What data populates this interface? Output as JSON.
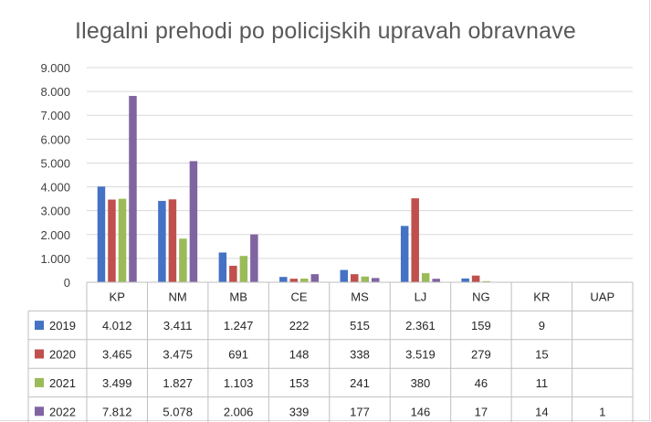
{
  "chart_data": {
    "type": "bar",
    "title": "Ilegalni prehodi po policijskih upravah obravnave",
    "categories": [
      "KP",
      "NM",
      "MB",
      "CE",
      "MS",
      "LJ",
      "NG",
      "KR",
      "UAP"
    ],
    "ylim": [
      0,
      9000
    ],
    "yticks": [
      "0",
      "1.000",
      "2.000",
      "3.000",
      "4.000",
      "5.000",
      "6.000",
      "7.000",
      "8.000",
      "9.000"
    ],
    "grid": true,
    "legend": "data-table-left",
    "series": [
      {
        "name": "2019",
        "color": "#4472c4",
        "values": [
          4012,
          3411,
          1247,
          222,
          515,
          2361,
          159,
          9,
          null
        ],
        "labels": [
          "4.012",
          "3.411",
          "1.247",
          "222",
          "515",
          "2.361",
          "159",
          "9",
          ""
        ]
      },
      {
        "name": "2020",
        "color": "#c0504d",
        "values": [
          3465,
          3475,
          691,
          148,
          338,
          3519,
          279,
          15,
          null
        ],
        "labels": [
          "3.465",
          "3.475",
          "691",
          "148",
          "338",
          "3.519",
          "279",
          "15",
          ""
        ]
      },
      {
        "name": "2021",
        "color": "#9bbb59",
        "values": [
          3499,
          1827,
          1103,
          153,
          241,
          380,
          46,
          11,
          null
        ],
        "labels": [
          "3.499",
          "1.827",
          "1.103",
          "153",
          "241",
          "380",
          "46",
          "11",
          ""
        ]
      },
      {
        "name": "2022",
        "color": "#8064a2",
        "values": [
          7812,
          5078,
          2006,
          339,
          177,
          146,
          17,
          14,
          1
        ],
        "labels": [
          "7.812",
          "5.078",
          "2.006",
          "339",
          "177",
          "146",
          "17",
          "14",
          "1"
        ]
      }
    ]
  }
}
